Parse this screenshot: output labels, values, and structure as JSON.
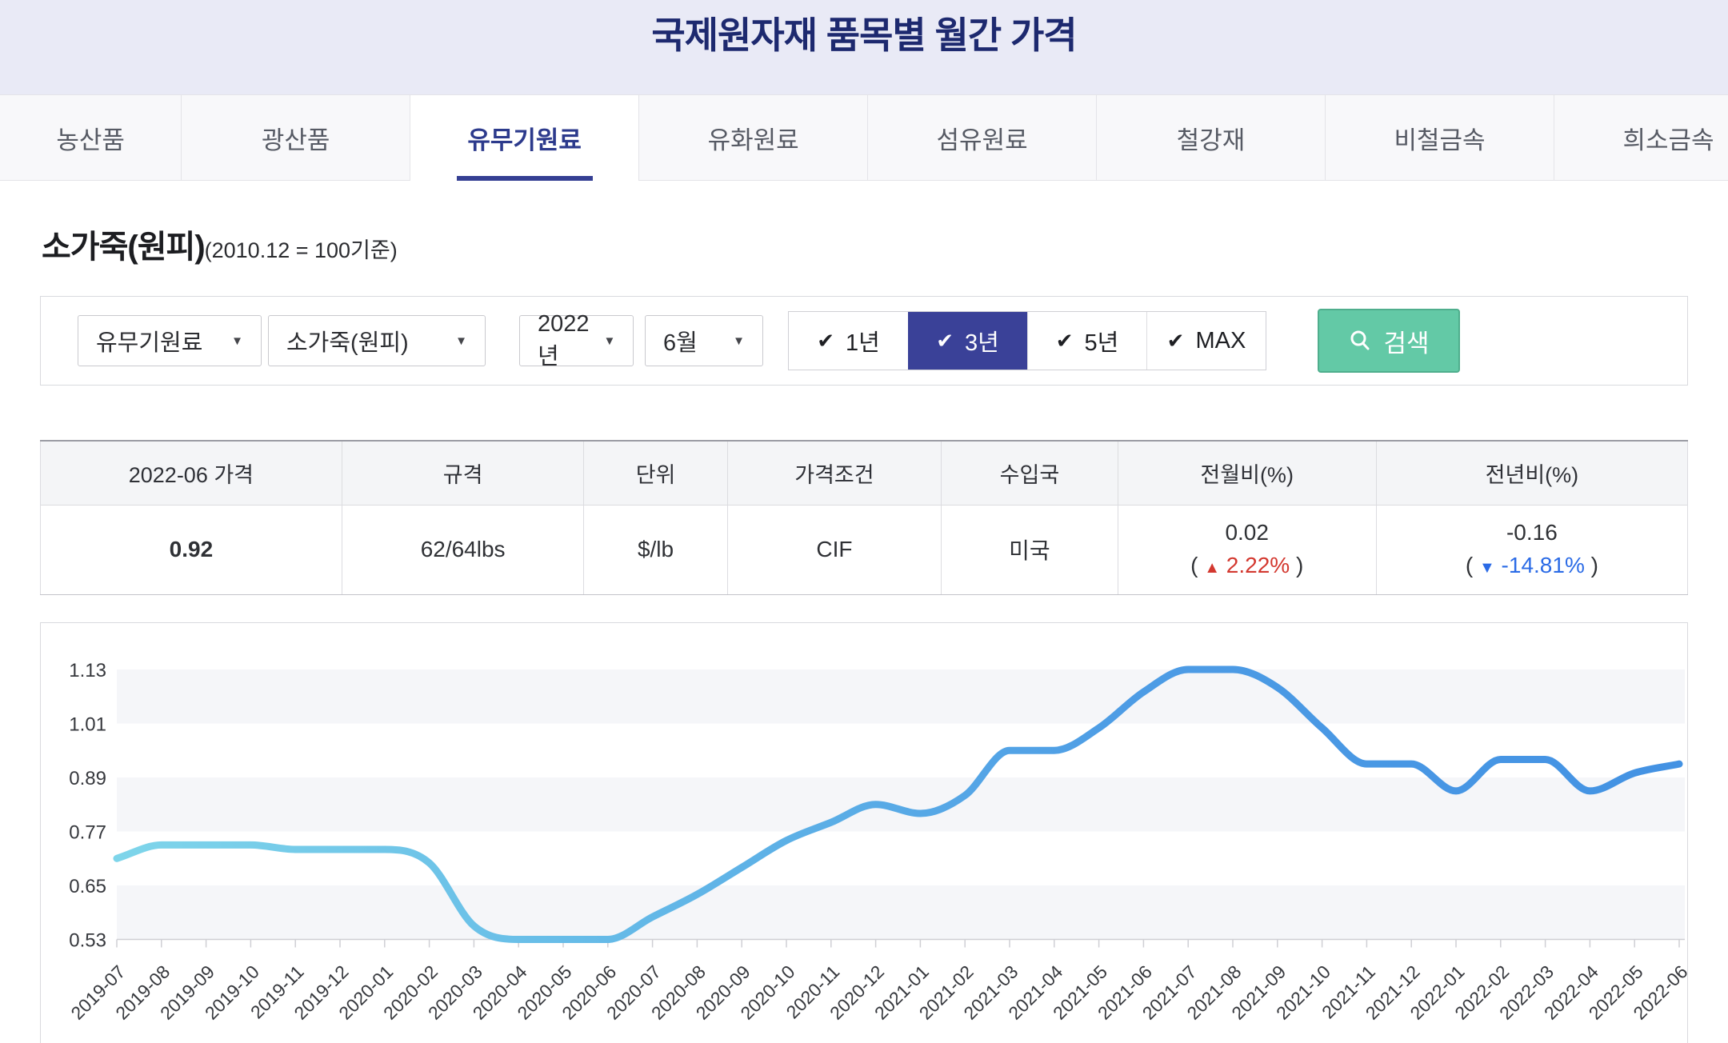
{
  "header": {
    "title": "국제원자재 품목별 월간 가격"
  },
  "tabs": [
    {
      "label": "농산품",
      "active": false
    },
    {
      "label": "광산품",
      "active": false
    },
    {
      "label": "유무기원료",
      "active": true
    },
    {
      "label": "유화원료",
      "active": false
    },
    {
      "label": "섬유원료",
      "active": false
    },
    {
      "label": "철강재",
      "active": false
    },
    {
      "label": "비철금속",
      "active": false
    },
    {
      "label": "희소금속",
      "active": false
    }
  ],
  "product": {
    "name": "소가죽(원피)",
    "note": "(2010.12 = 100기준)"
  },
  "icons": {
    "dropdown_caret": "▼",
    "check": "✔",
    "up_arrow": "▲",
    "down_arrow": "▼"
  },
  "filters": {
    "dropdowns": [
      {
        "id": "category",
        "value": "유무기원료"
      },
      {
        "id": "item",
        "value": "소가죽(원피)"
      },
      {
        "id": "year",
        "value": "2022년"
      },
      {
        "id": "month",
        "value": "6월"
      }
    ],
    "periods": [
      {
        "label": "1년",
        "active": false
      },
      {
        "label": "3년",
        "active": true
      },
      {
        "label": "5년",
        "active": false
      },
      {
        "label": "MAX",
        "active": false
      }
    ],
    "search_label": "검색"
  },
  "table": {
    "headers": [
      "2022-06 가격",
      "규격",
      "단위",
      "가격조건",
      "수입국",
      "전월비(%)",
      "전년비(%)"
    ],
    "row": {
      "price": "0.92",
      "spec": "62/64lbs",
      "unit": "$/lb",
      "condition": "CIF",
      "country": "미국",
      "mom": {
        "value": "0.02",
        "paren_open": "(",
        "arrow": "▲",
        "pct": "2.22%",
        "paren_close": ")",
        "direction": "up"
      },
      "yoy": {
        "value": "-0.16",
        "paren_open": "(",
        "arrow": "▼",
        "pct": "-14.81%",
        "paren_close": ")",
        "direction": "down"
      }
    }
  },
  "chart_data": {
    "type": "line",
    "title": "소가죽(원피) 월간 가격 지수 (2010.12 = 100기준)",
    "x": [
      "2019-07",
      "2019-08",
      "2019-09",
      "2019-10",
      "2019-11",
      "2019-12",
      "2020-01",
      "2020-02",
      "2020-03",
      "2020-04",
      "2020-05",
      "2020-06",
      "2020-07",
      "2020-08",
      "2020-09",
      "2020-10",
      "2020-11",
      "2020-12",
      "2021-01",
      "2021-02",
      "2021-03",
      "2021-04",
      "2021-05",
      "2021-06",
      "2021-07",
      "2021-08",
      "2021-09",
      "2021-10",
      "2021-11",
      "2021-12",
      "2022-01",
      "2022-02",
      "2022-03",
      "2022-04",
      "2022-05",
      "2022-06"
    ],
    "values": [
      0.71,
      0.74,
      0.74,
      0.74,
      0.73,
      0.73,
      0.73,
      0.7,
      0.56,
      0.53,
      0.53,
      0.53,
      0.58,
      0.63,
      0.69,
      0.75,
      0.79,
      0.83,
      0.81,
      0.85,
      0.95,
      0.95,
      1.0,
      1.08,
      1.13,
      1.13,
      1.09,
      1.0,
      0.92,
      0.92,
      0.86,
      0.93,
      0.93,
      0.86,
      0.9,
      0.92
    ],
    "yticks": [
      "1.13",
      "1.01",
      "0.89",
      "0.77",
      "0.65",
      "0.53"
    ],
    "ylim": [
      0.53,
      1.13
    ],
    "xlabel": "",
    "ylabel": "",
    "grid_bands": true,
    "band_color": "#f5f6f9",
    "axis_color": "#cfcfd4",
    "tick_label_color": "#36383d",
    "line_gradient": [
      "#7ed5ea",
      "#62b7e7",
      "#4d9ce5",
      "#4392e3"
    ],
    "legend": "none"
  }
}
